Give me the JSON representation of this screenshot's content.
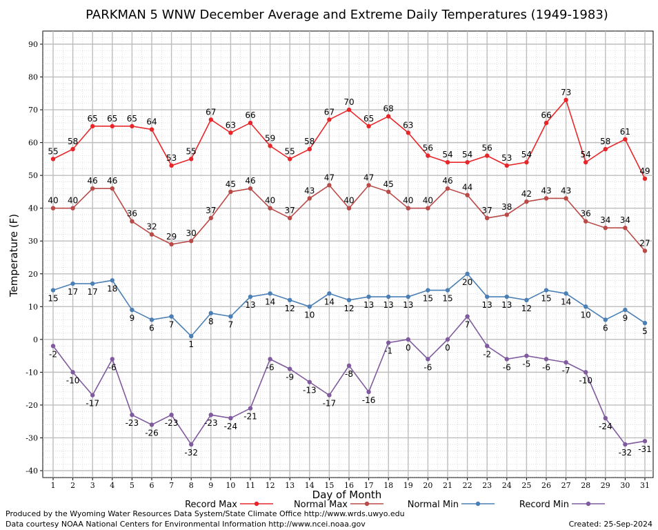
{
  "chart_data": {
    "type": "line",
    "title": "PARKMAN 5 WNW December Average and Extreme Daily Temperatures (1949-1983)",
    "xlabel": "Day of Month",
    "ylabel": "Temperature (F)",
    "ylim": [
      -40,
      90
    ],
    "yticks": [
      -40,
      -30,
      -20,
      -10,
      0,
      10,
      20,
      30,
      40,
      50,
      60,
      70,
      80,
      90
    ],
    "x": [
      1,
      2,
      3,
      4,
      5,
      6,
      7,
      8,
      9,
      10,
      11,
      12,
      13,
      14,
      15,
      16,
      17,
      18,
      19,
      20,
      21,
      22,
      23,
      24,
      25,
      26,
      27,
      28,
      29,
      30,
      31
    ],
    "grid": true,
    "legend_position": "bottom",
    "series": [
      {
        "name": "Record Max",
        "color": "#e8262a",
        "values": [
          55,
          58,
          65,
          65,
          65,
          64,
          53,
          55,
          67,
          63,
          66,
          59,
          55,
          58,
          67,
          70,
          65,
          68,
          63,
          56,
          54,
          54,
          56,
          53,
          54,
          66,
          73,
          54,
          58,
          61,
          49
        ],
        "label_position": "above"
      },
      {
        "name": "Normal Max",
        "color": "#b94a48",
        "values": [
          40,
          40,
          46,
          46,
          36,
          32,
          29,
          30,
          37,
          45,
          46,
          40,
          37,
          43,
          47,
          40,
          47,
          45,
          40,
          40,
          46,
          44,
          37,
          38,
          42,
          43,
          43,
          36,
          34,
          34,
          27
        ],
        "label_position": "above"
      },
      {
        "name": "Normal Min",
        "color": "#4a7fb5",
        "values": [
          15,
          17,
          17,
          18,
          9,
          6,
          7,
          1,
          8,
          7,
          13,
          14,
          12,
          10,
          14,
          12,
          13,
          13,
          13,
          15,
          15,
          20,
          13,
          13,
          12,
          15,
          14,
          10,
          6,
          9,
          5
        ],
        "label_position": "below"
      },
      {
        "name": "Record Min",
        "color": "#7f5a9e",
        "values": [
          -2,
          -10,
          -17,
          -6,
          -23,
          -26,
          -23,
          -32,
          -23,
          -24,
          -21,
          -6,
          -9,
          -13,
          -17,
          -8,
          -16,
          -1,
          0,
          -6,
          0,
          7,
          -2,
          -6,
          -5,
          -6,
          -7,
          -10,
          -24,
          -32,
          -31
        ],
        "label_position": "below"
      }
    ]
  },
  "footer": {
    "produced_by": "Produced by the Wyoming Water Resources Data System/State Climate Office http://www.wrds.uwyo.edu",
    "data_courtesy": "Data courtesy NOAA National Centers for Environmental Information http://www.ncei.noaa.gov",
    "created": "Created: 25-Sep-2024"
  }
}
